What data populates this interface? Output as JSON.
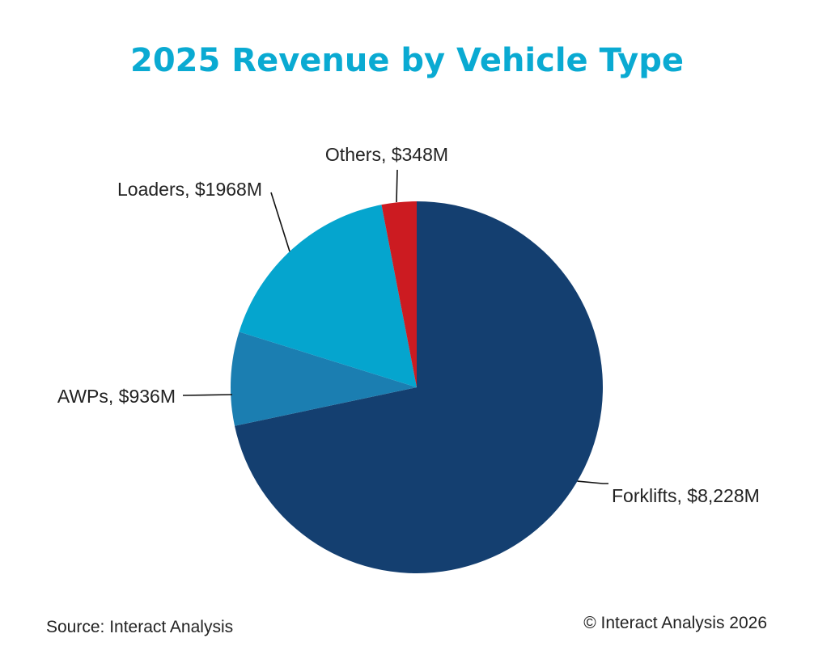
{
  "chart_data": {
    "type": "pie",
    "title": "2025 Revenue by Vehicle Type",
    "slices": [
      {
        "name": "Forklifts",
        "value": 8228,
        "label": "Forklifts, $8,228M",
        "color": "#143F70"
      },
      {
        "name": "AWPs",
        "value": 936,
        "label": "AWPs, $936M",
        "color": "#1B7EB1"
      },
      {
        "name": "Loaders",
        "value": 1968,
        "label": "Loaders, $1968M",
        "color": "#05A5CE"
      },
      {
        "name": "Others",
        "value": 348,
        "label": "Others, $348M",
        "color": "#CC1B21"
      }
    ],
    "start_angle": "12 o'clock",
    "direction": "clockwise",
    "units": "USD millions"
  },
  "colors": {
    "title": "#0AAAD2",
    "leader_line": "#111111"
  },
  "footer": {
    "source": "Source: Interact Analysis",
    "copyright": "© Interact Analysis 2026"
  }
}
